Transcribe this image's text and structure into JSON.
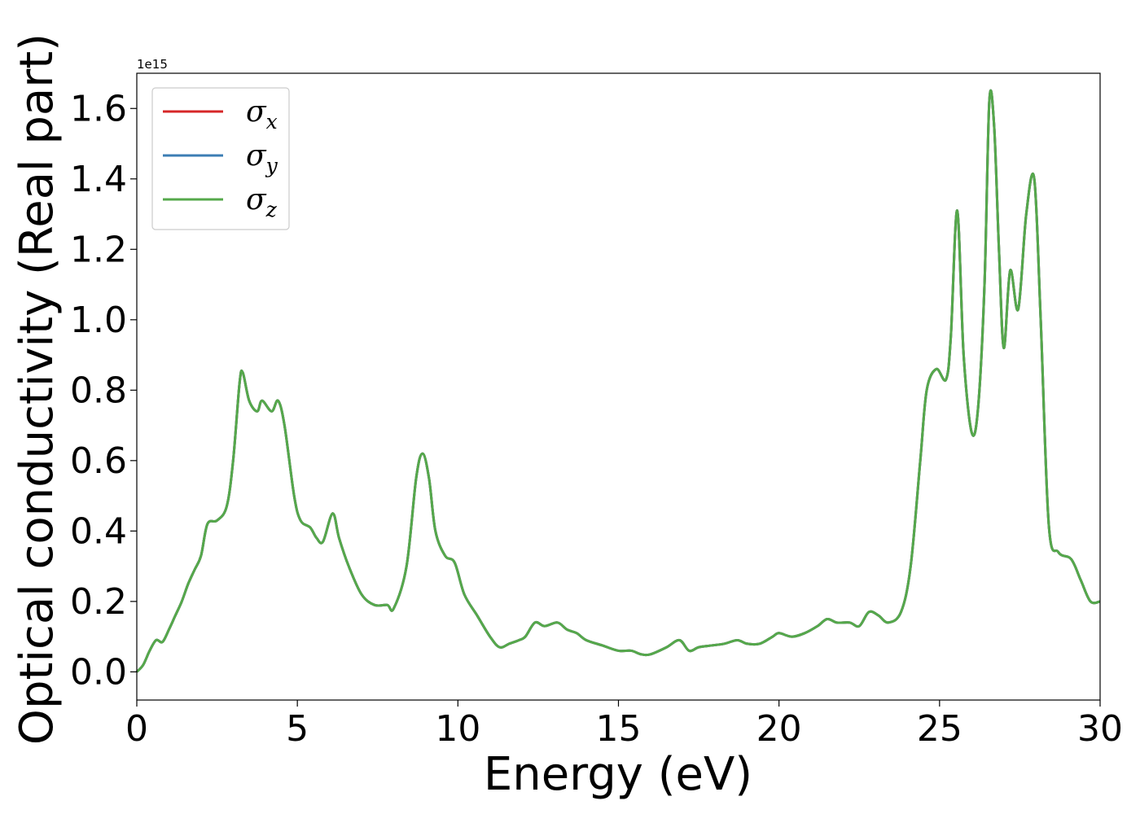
{
  "chart_data": {
    "type": "line",
    "title": "",
    "xlabel": "Energy (eV)",
    "ylabel": "Optical conductivity (Real part)",
    "offset_text": "1e15",
    "xlim": [
      0,
      30
    ],
    "ylim": [
      -0.08,
      1.7
    ],
    "xticks": [
      0,
      5,
      10,
      15,
      20,
      25,
      30
    ],
    "xtick_labels": [
      "0",
      "5",
      "10",
      "15",
      "20",
      "25",
      "30"
    ],
    "yticks": [
      0.0,
      0.2,
      0.4,
      0.6,
      0.8,
      1.0,
      1.2,
      1.4,
      1.6
    ],
    "ytick_labels": [
      "0.0",
      "0.2",
      "0.4",
      "0.6",
      "0.8",
      "1.0",
      "1.2",
      "1.4",
      "1.6"
    ],
    "grid": false,
    "legend_position": "top-left",
    "series": [
      {
        "name": "σx",
        "symbol": "σ",
        "subscript": "x",
        "color": "#d62728"
      },
      {
        "name": "σy",
        "symbol": "σ",
        "subscript": "y",
        "color": "#3c7eb4"
      },
      {
        "name": "σz",
        "symbol": "σ",
        "subscript": "z",
        "color": "#55a84b"
      }
    ],
    "x": [
      0,
      0.2,
      0.4,
      0.6,
      0.8,
      1.0,
      1.2,
      1.4,
      1.6,
      1.8,
      2.0,
      2.2,
      2.5,
      2.8,
      3.0,
      3.2,
      3.3,
      3.5,
      3.75,
      3.9,
      4.2,
      4.4,
      4.6,
      4.9,
      5.1,
      5.4,
      5.6,
      5.8,
      6.1,
      6.3,
      6.6,
      7.0,
      7.4,
      7.8,
      8.0,
      8.4,
      8.7,
      8.9,
      9.1,
      9.3,
      9.6,
      9.9,
      10.2,
      10.6,
      11.0,
      11.3,
      11.6,
      11.9,
      12.1,
      12.4,
      12.7,
      13.1,
      13.4,
      13.7,
      14.0,
      14.5,
      15.0,
      15.4,
      15.7,
      16.0,
      16.5,
      16.9,
      17.2,
      17.5,
      17.9,
      18.3,
      18.7,
      19.0,
      19.4,
      19.8,
      20.0,
      20.4,
      20.8,
      21.2,
      21.5,
      21.8,
      22.2,
      22.5,
      22.8,
      23.1,
      23.4,
      23.8,
      24.1,
      24.4,
      24.6,
      24.9,
      25.2,
      25.35,
      25.55,
      25.75,
      26.0,
      26.2,
      26.4,
      26.55,
      26.7,
      26.85,
      27.0,
      27.2,
      27.45,
      27.7,
      27.95,
      28.15,
      28.4,
      28.7,
      29.1,
      29.4,
      29.7,
      30.0
    ],
    "values": [
      0.0,
      0.02,
      0.06,
      0.09,
      0.085,
      0.12,
      0.16,
      0.2,
      0.25,
      0.29,
      0.33,
      0.42,
      0.43,
      0.47,
      0.6,
      0.82,
      0.85,
      0.77,
      0.74,
      0.77,
      0.74,
      0.77,
      0.7,
      0.5,
      0.43,
      0.41,
      0.38,
      0.37,
      0.45,
      0.38,
      0.3,
      0.22,
      0.19,
      0.19,
      0.18,
      0.3,
      0.55,
      0.62,
      0.55,
      0.4,
      0.33,
      0.31,
      0.22,
      0.16,
      0.1,
      0.07,
      0.08,
      0.09,
      0.1,
      0.14,
      0.13,
      0.14,
      0.12,
      0.11,
      0.09,
      0.075,
      0.06,
      0.06,
      0.05,
      0.05,
      0.07,
      0.09,
      0.06,
      0.07,
      0.075,
      0.08,
      0.09,
      0.08,
      0.08,
      0.1,
      0.11,
      0.1,
      0.11,
      0.13,
      0.15,
      0.14,
      0.14,
      0.13,
      0.17,
      0.16,
      0.14,
      0.17,
      0.3,
      0.6,
      0.8,
      0.86,
      0.83,
      0.95,
      1.31,
      0.9,
      0.68,
      0.75,
      1.1,
      1.62,
      1.55,
      1.2,
      0.92,
      1.14,
      1.03,
      1.3,
      1.4,
      1.0,
      0.42,
      0.34,
      0.32,
      0.26,
      0.2,
      0.2
    ]
  }
}
